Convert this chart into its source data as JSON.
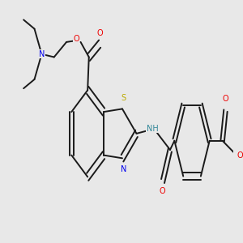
{
  "bg_color": "#e8e8e8",
  "bond_color": "#1a1a1a",
  "bond_lw": 1.4,
  "atom_colors": {
    "N": "#0000ee",
    "O": "#ee0000",
    "S": "#bbaa00",
    "H": "#338899",
    "C": "#1a1a1a"
  },
  "font_size": 7.0,
  "fig_bg": "#e8e8e8"
}
